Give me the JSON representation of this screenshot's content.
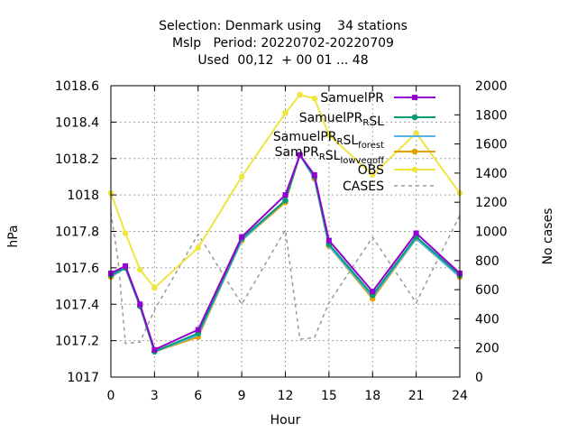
{
  "chart_data": {
    "type": "line",
    "title_lines": [
      "Selection: Denmark using    34 stations",
      "Mslp   Period: 20220702-20220709",
      "Used  00,12  + 00 01 ... 48"
    ],
    "xlabel": "Hour",
    "ylabel": "hPa",
    "y2label": "No cases",
    "xlim": [
      0,
      24
    ],
    "ylim": [
      1017,
      1018.6
    ],
    "y2lim": [
      0,
      2000
    ],
    "x_ticks": [
      "0",
      "3",
      "6",
      "9",
      "12",
      "15",
      "18",
      "21",
      "24"
    ],
    "y_ticks": [
      "1017",
      "1017.2",
      "1017.4",
      "1017.6",
      "1017.8",
      "1018",
      "1018.2",
      "1018.4",
      "1018.6"
    ],
    "y2_ticks": [
      "0",
      "200",
      "400",
      "600",
      "800",
      "1000",
      "1200",
      "1400",
      "1600",
      "1800",
      "2000"
    ],
    "grid": true,
    "legend_position": "top-right",
    "x": [
      0,
      1,
      2,
      3,
      6,
      9,
      12,
      13,
      14,
      15,
      18,
      21,
      24
    ],
    "series": [
      {
        "name": "SamuelPR",
        "legend": {
          "parts": [
            {
              "t": "SamuelPR"
            }
          ]
        },
        "color": "#9400d3",
        "marker": "square",
        "axis": "y1",
        "values": [
          1017.57,
          1017.61,
          1017.4,
          1017.15,
          1017.26,
          1017.77,
          1018.0,
          1018.22,
          1018.11,
          1017.75,
          1017.47,
          1017.79,
          1017.57
        ]
      },
      {
        "name": "SamuelPR_R SL",
        "legend": {
          "parts": [
            {
              "t": "SamuelPR"
            },
            {
              "t": "R",
              "sub": true
            },
            {
              "t": "SL"
            }
          ]
        },
        "color": "#009e73",
        "marker": "filled",
        "axis": "y1",
        "values": [
          1017.56,
          1017.6,
          1017.39,
          1017.14,
          1017.24,
          1017.76,
          1017.97,
          1018.22,
          1018.1,
          1017.73,
          1017.45,
          1017.77,
          1017.56
        ]
      },
      {
        "name": "SamuelPR_R SL_forest",
        "legend": {
          "parts": [
            {
              "t": "SamuelPR"
            },
            {
              "t": "R",
              "sub": true
            },
            {
              "t": "SL"
            },
            {
              "t": "forest",
              "sub": true
            }
          ]
        },
        "color": "#56b4e9",
        "marker": "none",
        "axis": "y1",
        "values": [
          1017.55,
          1017.6,
          1017.39,
          1017.14,
          1017.23,
          1017.75,
          1017.97,
          1018.22,
          1018.09,
          1017.72,
          1017.44,
          1017.76,
          1017.55
        ]
      },
      {
        "name": "SamPR_R SL_lowvegoff",
        "legend": {
          "parts": [
            {
              "t": "SamPR"
            },
            {
              "t": "R",
              "sub": true
            },
            {
              "t": "SL"
            },
            {
              "t": "lowvegoff",
              "sub": true
            }
          ]
        },
        "color": "#e69f00",
        "marker": "filled",
        "axis": "y1",
        "values": [
          1017.55,
          1017.6,
          1017.39,
          1017.14,
          1017.22,
          1017.75,
          1017.96,
          1018.22,
          1018.09,
          1017.72,
          1017.43,
          1017.76,
          1017.55
        ]
      },
      {
        "name": "OBS",
        "legend": {
          "parts": [
            {
              "t": "OBS"
            }
          ]
        },
        "color": "#f0e442",
        "marker": "filled",
        "axis": "y1",
        "values": [
          1018.01,
          1017.79,
          1017.59,
          1017.49,
          1017.71,
          1018.1,
          1018.45,
          1018.55,
          1018.53,
          1018.33,
          1018.11,
          1018.34,
          1018.01
        ]
      },
      {
        "name": "CASES",
        "legend": {
          "parts": [
            {
              "t": "CASES"
            }
          ]
        },
        "color": "#999999",
        "marker": "none",
        "dashed": true,
        "axis": "y2",
        "x": [
          0,
          0.5,
          1,
          2,
          3,
          6,
          9,
          12,
          13,
          14,
          15,
          18,
          21,
          24
        ],
        "values": [
          1130,
          800,
          230,
          240,
          460,
          980,
          500,
          1010,
          260,
          270,
          510,
          960,
          510,
          1110
        ]
      }
    ]
  }
}
